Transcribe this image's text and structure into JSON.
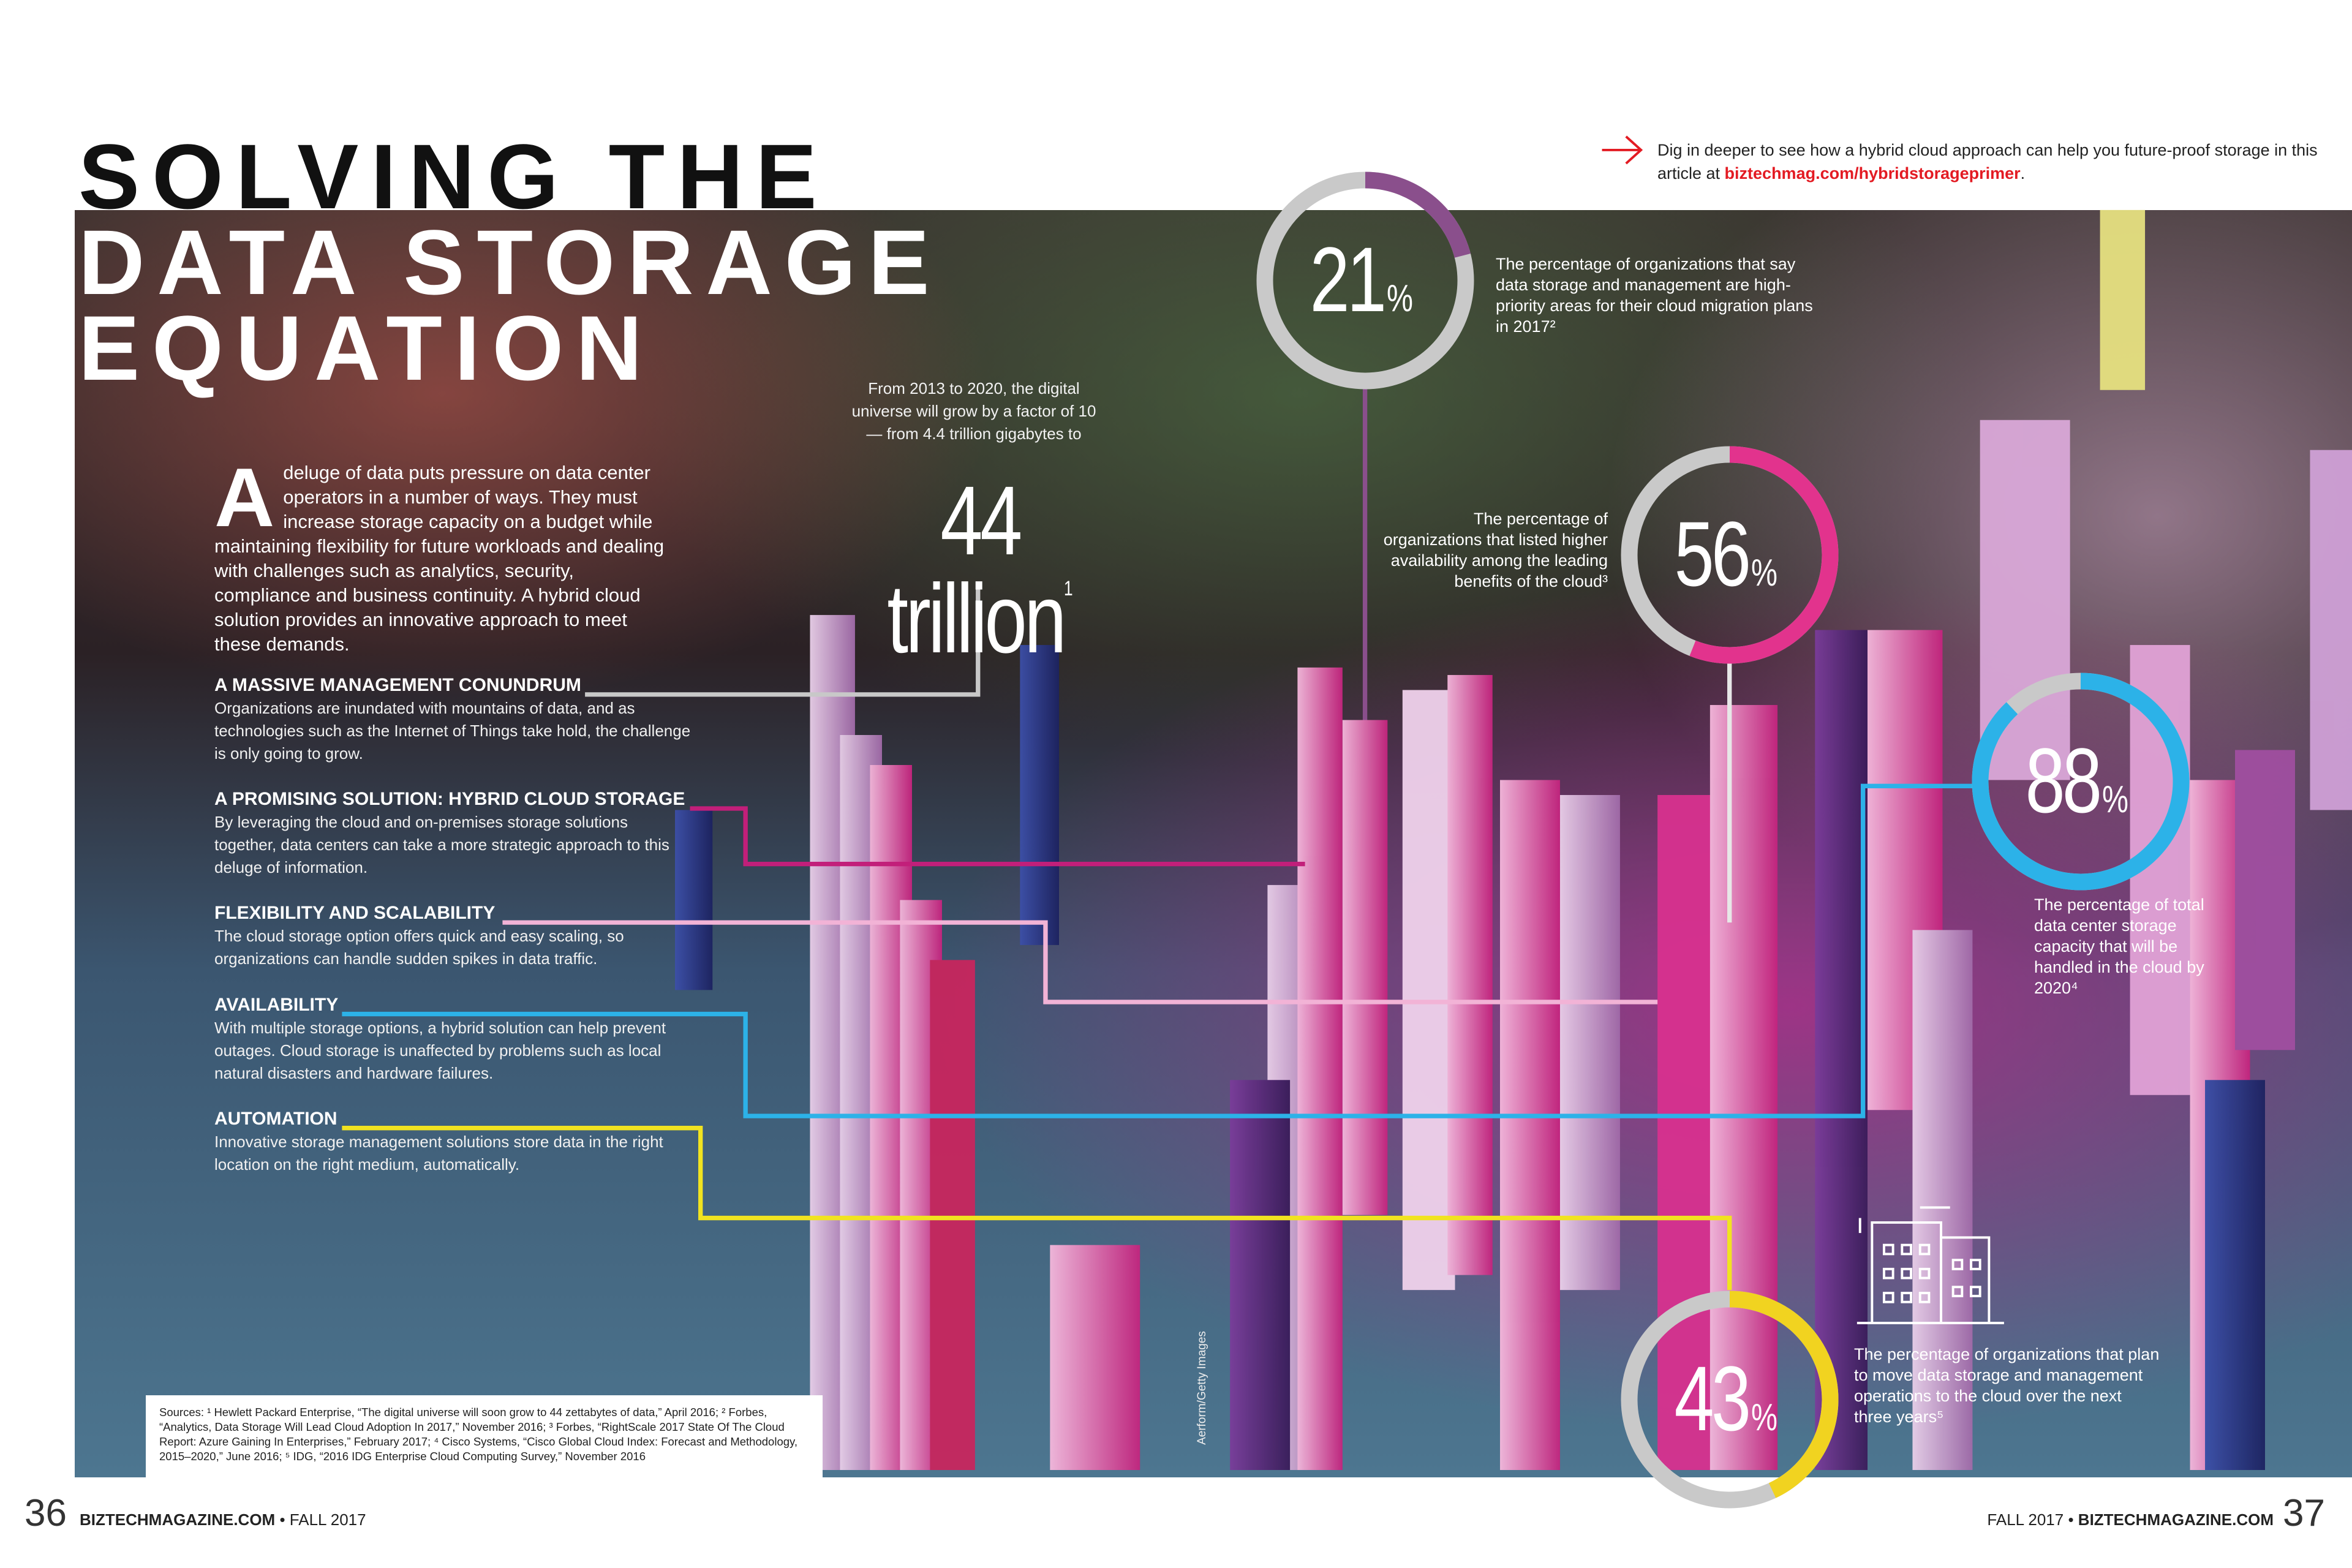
{
  "header": {
    "title_lines": [
      "SOLVING THE",
      "DATA STORAGE",
      "EQUATION"
    ],
    "promo": {
      "text": "Dig in deeper to see how a hybrid cloud approach can help you future-proof storage in this article at ",
      "link": "biztechmag.com/hybridstorageprimer",
      "end": "."
    }
  },
  "intro": {
    "drop_cap": "A",
    "text": "deluge of data puts pressure on data center operators in a number of ways. They must increase storage capacity on a budget while maintaining flexibility for future workloads and dealing with challenges such as analytics, security, compliance and business continuity. A hybrid cloud solution provides an innovative approach to meet these demands."
  },
  "sections": [
    {
      "heading": "A MASSIVE MANAGEMENT CONUNDRUM",
      "body": "Organizations are inundated with mountains of data, and as technologies such as the Internet of Things take hold, the challenge is only going to grow."
    },
    {
      "heading": "A PROMISING SOLUTION: HYBRID CLOUD STORAGE",
      "body": "By leveraging the cloud and on-premises storage solutions together, data centers can take a more strategic approach to this deluge of information."
    },
    {
      "heading": "FLEXIBILITY AND SCALABILITY",
      "body": "The cloud storage option offers quick and easy scaling, so organizations can handle sudden spikes in data traffic."
    },
    {
      "heading": "AVAILABILITY",
      "body": "With multiple storage options, a hybrid solution can help prevent outages. Cloud storage is unaffected by problems such as local natural disasters and  hardware failures."
    },
    {
      "heading": "AUTOMATION",
      "body": "Innovative storage management solutions store data in the right location on the right medium, automatically."
    }
  ],
  "growth": {
    "text": "From 2013 to 2020, the digital universe will grow by a factor of 10 — from 4.4 trillion gigabytes to",
    "figure": "44 trillion",
    "note": "1"
  },
  "stats": [
    {
      "value": 21,
      "unit": "%",
      "color": "#8a4f8c",
      "text": "The percentage of organizations that say data storage and management are high-priority areas for their cloud migration plans in 2017²"
    },
    {
      "value": 56,
      "unit": "%",
      "color": "#e2338d",
      "text": "The percentage of organizations that listed higher availability among the leading benefits of the cloud³"
    },
    {
      "value": 88,
      "unit": "%",
      "color": "#2cb2e8",
      "text": "The percentage of total data center storage capacity that will be handled in the cloud by 2020⁴"
    },
    {
      "value": 43,
      "unit": "%",
      "color": "#f1d320",
      "text": "The percentage of organizations that plan to move data storage and management operations to the cloud over the next three years⁵"
    }
  ],
  "sources": "Sources: ¹ Hewlett Packard Enterprise, “The digital universe will soon grow to 44 zettabytes of data,” April 2016; ² Forbes, “Analytics, Data Storage Will Lead Cloud Adoption In 2017,” November 2016; ³ Forbes, “RightScale 2017 State Of The Cloud Report: Azure Gaining In Enterprises,” February 2017; ⁴ Cisco Systems, “Cisco Global Cloud Index: Forecast and Methodology, 2015–2020,” June 2016; ⁵ IDG, “2016 IDG Enterprise Cloud Computing Survey,” November 2016",
  "credit": "Aerform/Getty Images",
  "footer": {
    "left": {
      "page": "36",
      "site": "BIZTECHMAGAZINE.COM",
      "separator": "•",
      "issue": "FALL 2017"
    },
    "right": {
      "issue": "FALL 2017",
      "separator": "•",
      "site": "BIZTECHMAGAZINE.COM",
      "page": "37"
    }
  }
}
